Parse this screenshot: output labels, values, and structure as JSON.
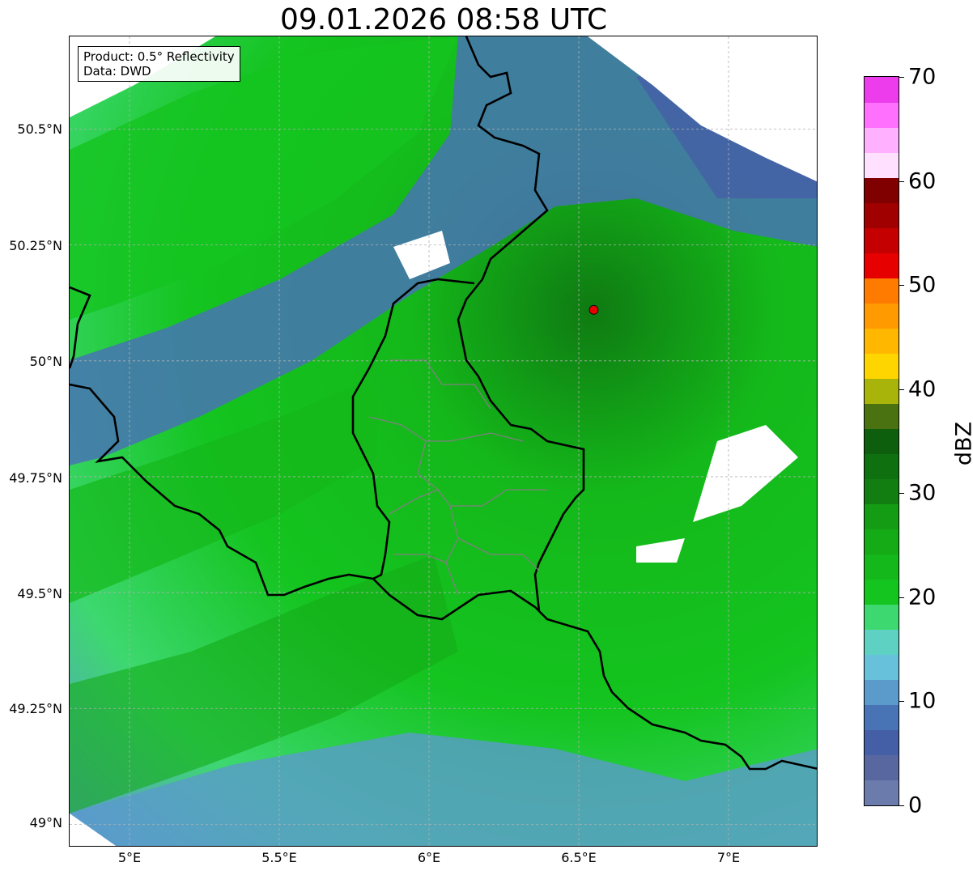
{
  "title": "09.01.2026 08:58 UTC",
  "info": {
    "product": "Product: 0.5° Reflectivity",
    "data": "Data: DWD"
  },
  "lat_ticks": [
    "50.5°N",
    "50.25°N",
    "50°N",
    "49.75°N",
    "49.5°N",
    "49.25°N",
    "49°N"
  ],
  "lon_ticks": [
    "5°E",
    "5.5°E",
    "6°E",
    "6.5°E",
    "7°E"
  ],
  "map_extent": {
    "lon": [
      4.8,
      7.3
    ],
    "lat": [
      48.95,
      50.7
    ]
  },
  "radar_site": {
    "lon": 6.55,
    "lat": 50.11,
    "color": "#e60000"
  },
  "colorbar": {
    "unit": "dBZ",
    "range": [
      0,
      70
    ],
    "tick_labels": [
      "0",
      "10",
      "20",
      "30",
      "40",
      "50",
      "60",
      "70"
    ],
    "colors": [
      "#6b7bab",
      "#5867a0",
      "#455fa6",
      "#4873b5",
      "#5a9bcc",
      "#67c1db",
      "#5fd1c2",
      "#3dd86f",
      "#14c41f",
      "#14b81a",
      "#14ab17",
      "#149c14",
      "#127e12",
      "#0f7010",
      "#0d5f0d",
      "#4a7211",
      "#a8b40a",
      "#ffd500",
      "#ffb700",
      "#ff9a00",
      "#ff7b00",
      "#e60000",
      "#c40000",
      "#a00000",
      "#800000",
      "#ffe0ff",
      "#ffb0ff",
      "#ff70ff",
      "#ec3cec"
    ]
  },
  "colors": {
    "border_country": "#000000",
    "border_canton": "#808080",
    "grid": "#b0b0b0"
  }
}
